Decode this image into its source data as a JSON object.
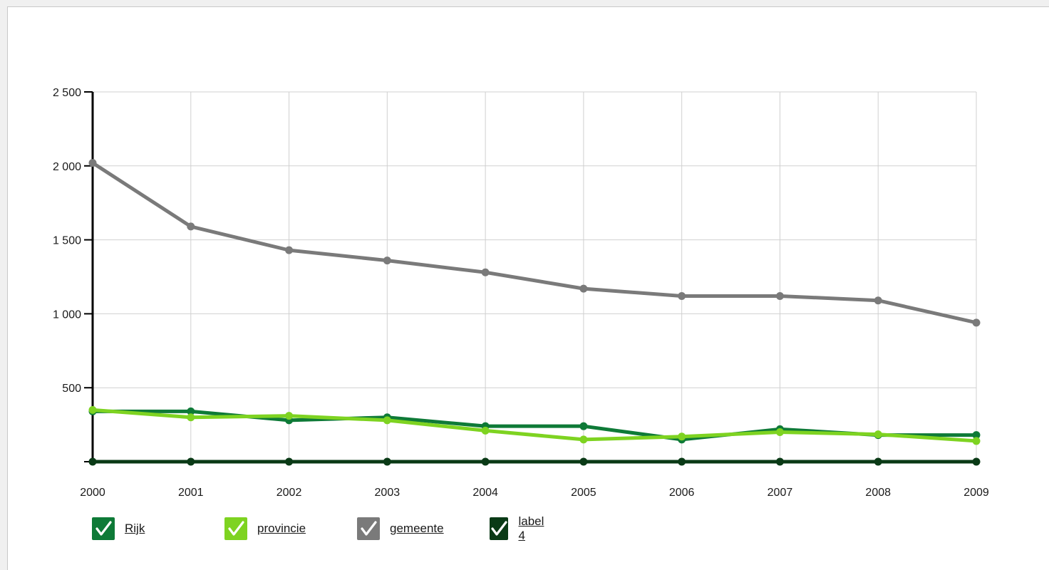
{
  "chart_data": {
    "type": "line",
    "title": "",
    "xlabel": "",
    "ylabel": "",
    "x": [
      "2000",
      "2001",
      "2002",
      "2003",
      "2004",
      "2005",
      "2006",
      "2007",
      "2008",
      "2009"
    ],
    "ylim": [
      0,
      2500
    ],
    "yticks": [
      0,
      500,
      1000,
      1500,
      2000,
      2500
    ],
    "ytick_labels": [
      "",
      "500",
      "1 000",
      "1 500",
      "2 000",
      "2 500"
    ],
    "grid": true,
    "legend_position": "bottom-left",
    "series": [
      {
        "name": "Rijk",
        "color": "#0e7a37",
        "values": [
          340,
          340,
          280,
          300,
          240,
          240,
          150,
          220,
          180,
          180
        ]
      },
      {
        "name": "provincie",
        "color": "#7ed321",
        "values": [
          350,
          300,
          310,
          280,
          210,
          150,
          170,
          200,
          185,
          140
        ]
      },
      {
        "name": "gemeente",
        "color": "#7a7a7a",
        "values": [
          2020,
          1590,
          1430,
          1360,
          1280,
          1170,
          1120,
          1120,
          1090,
          940
        ]
      },
      {
        "name": "label 4",
        "color": "#0a3a16",
        "values": [
          0,
          0,
          0,
          0,
          0,
          0,
          0,
          0,
          0,
          0
        ]
      }
    ]
  }
}
